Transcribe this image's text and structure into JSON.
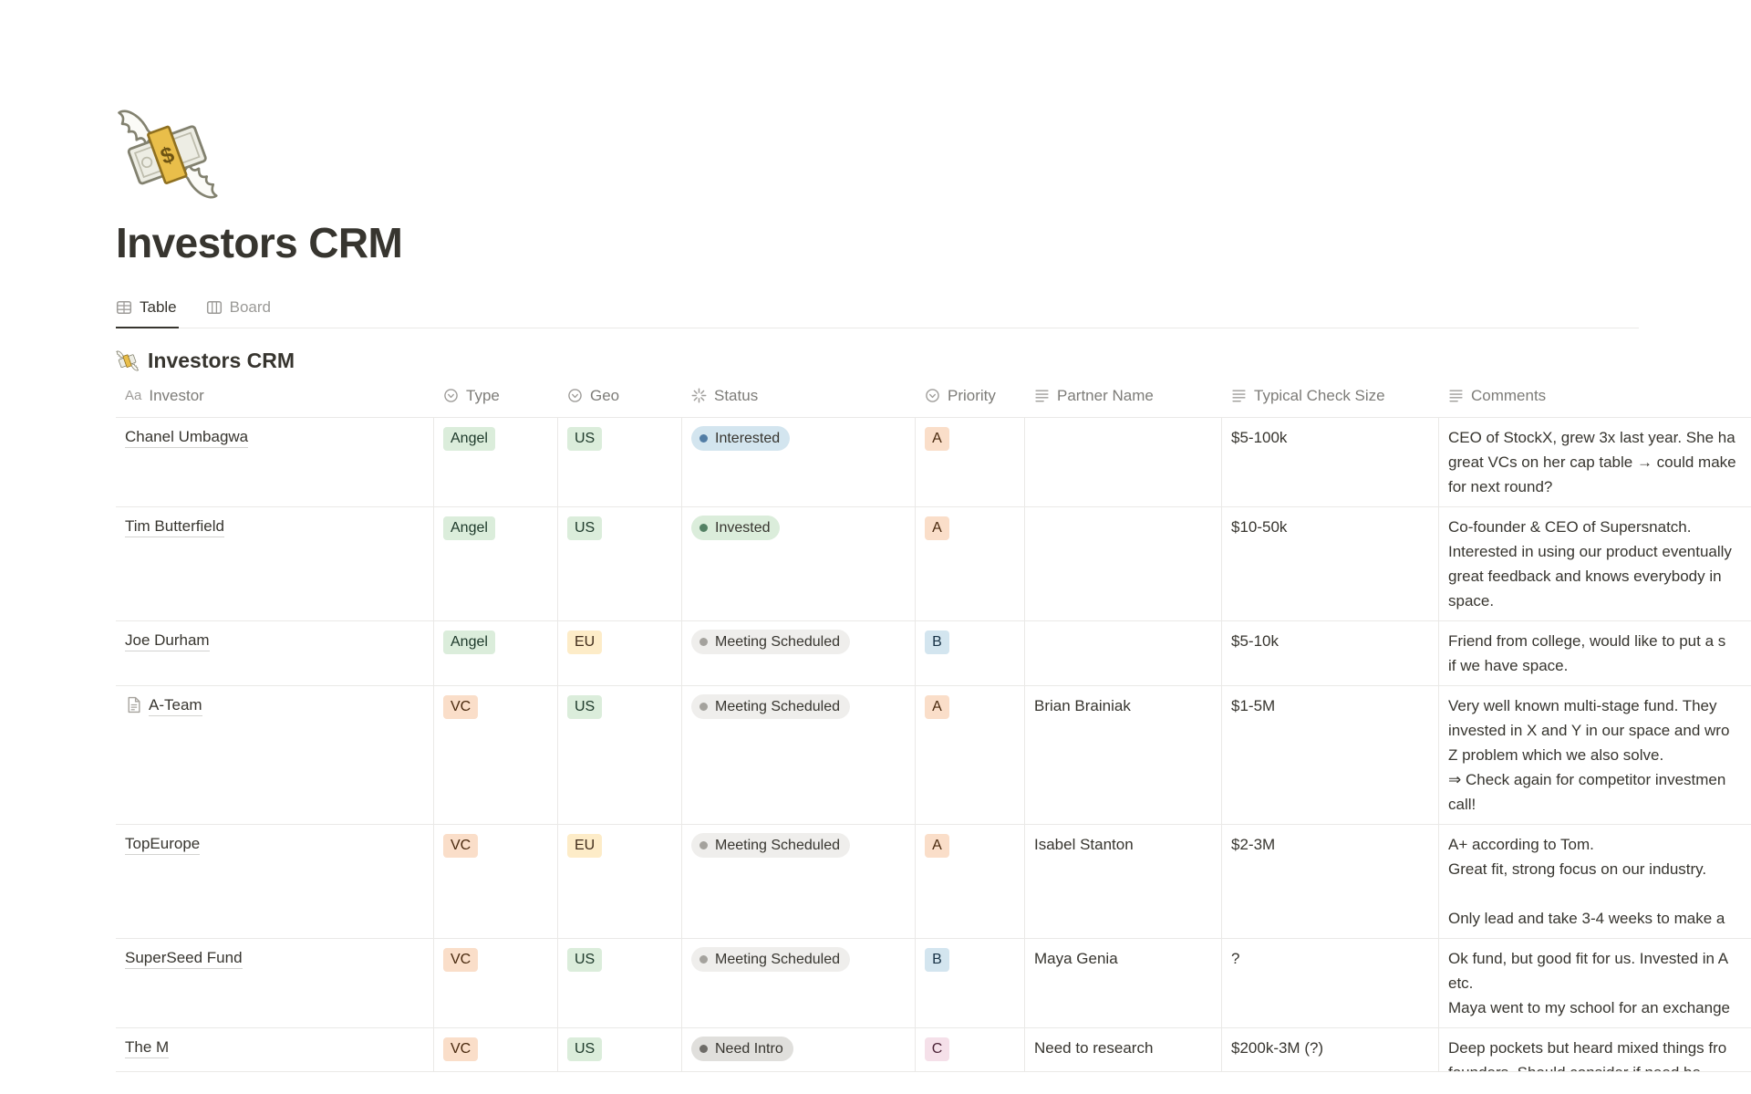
{
  "page": {
    "title": "Investors CRM",
    "icon": "money-with-wings-emoji"
  },
  "tabs": [
    {
      "label": "Table",
      "icon": "table-view-icon",
      "active": true
    },
    {
      "label": "Board",
      "icon": "board-view-icon",
      "active": false
    }
  ],
  "section": {
    "title": "Investors CRM",
    "icon": "money-with-wings-emoji"
  },
  "table": {
    "columns": [
      {
        "label": "Investor",
        "icon": "title-icon"
      },
      {
        "label": "Type",
        "icon": "select-icon"
      },
      {
        "label": "Geo",
        "icon": "select-icon"
      },
      {
        "label": "Status",
        "icon": "status-icon"
      },
      {
        "label": "Priority",
        "icon": "select-icon"
      },
      {
        "label": "Partner Name",
        "icon": "text-icon"
      },
      {
        "label": "Typical Check Size",
        "icon": "text-icon"
      },
      {
        "label": "Comments",
        "icon": "text-icon"
      }
    ],
    "rows": [
      {
        "investor": "Chanel Umbagwa",
        "has_page_icon": false,
        "type": {
          "label": "Angel",
          "color": "green"
        },
        "geo": {
          "label": "US",
          "color": "green"
        },
        "status": {
          "label": "Interested",
          "color": "blue"
        },
        "priority": {
          "label": "A",
          "color": "orange"
        },
        "partner": "",
        "check_size": "$5-100k",
        "comments": [
          "CEO of StockX, grew 3x last year. She ha",
          "great VCs on her cap table → could make",
          "for next round?"
        ]
      },
      {
        "investor": "Tim Butterfield",
        "has_page_icon": false,
        "type": {
          "label": "Angel",
          "color": "green"
        },
        "geo": {
          "label": "US",
          "color": "green"
        },
        "status": {
          "label": "Invested",
          "color": "green"
        },
        "priority": {
          "label": "A",
          "color": "orange"
        },
        "partner": "",
        "check_size": "$10-50k",
        "comments": [
          "Co-founder & CEO of Supersnatch.",
          "Interested in using our product eventually",
          "great feedback and knows everybody in",
          "space."
        ]
      },
      {
        "investor": "Joe Durham",
        "has_page_icon": false,
        "type": {
          "label": "Angel",
          "color": "green"
        },
        "geo": {
          "label": "EU",
          "color": "yellow"
        },
        "status": {
          "label": "Meeting Scheduled",
          "color": "gray"
        },
        "priority": {
          "label": "B",
          "color": "blue"
        },
        "partner": "",
        "check_size": "$5-10k",
        "comments": [
          "Friend from college, would like to put a s",
          "if we have space."
        ]
      },
      {
        "investor": "A-Team",
        "has_page_icon": true,
        "type": {
          "label": "VC",
          "color": "orange"
        },
        "geo": {
          "label": "US",
          "color": "green"
        },
        "status": {
          "label": "Meeting Scheduled",
          "color": "gray"
        },
        "priority": {
          "label": "A",
          "color": "orange"
        },
        "partner": "Brian Brainiak",
        "check_size": "$1-5M",
        "comments": [
          "Very well known multi-stage fund. They",
          "invested in X and Y in our space and wro",
          "Z problem which we also solve.",
          "⇒ Check again for competitor investmen",
          "call!"
        ]
      },
      {
        "investor": "TopEurope",
        "has_page_icon": false,
        "type": {
          "label": "VC",
          "color": "orange"
        },
        "geo": {
          "label": "EU",
          "color": "yellow"
        },
        "status": {
          "label": "Meeting Scheduled",
          "color": "gray"
        },
        "priority": {
          "label": "A",
          "color": "orange"
        },
        "partner": "Isabel Stanton",
        "check_size": "$2-3M",
        "comments": [
          "A+ according to Tom.",
          "Great fit, strong focus on our industry.",
          "",
          "Only lead and take 3-4 weeks to make a"
        ]
      },
      {
        "investor": "SuperSeed Fund",
        "has_page_icon": false,
        "type": {
          "label": "VC",
          "color": "orange"
        },
        "geo": {
          "label": "US",
          "color": "green"
        },
        "status": {
          "label": "Meeting Scheduled",
          "color": "gray"
        },
        "priority": {
          "label": "B",
          "color": "blue"
        },
        "partner": "Maya Genia",
        "check_size": "?",
        "comments": [
          "Ok fund, but good fit for us. Invested in A",
          "etc.",
          "Maya went to my school for an exchange"
        ]
      },
      {
        "investor": "The M",
        "has_page_icon": false,
        "clipped": true,
        "type": {
          "label": "VC",
          "color": "orange"
        },
        "geo": {
          "label": "US",
          "color": "green"
        },
        "status": {
          "label": "Need Intro",
          "color": "darkgray"
        },
        "priority": {
          "label": "C",
          "color": "pink"
        },
        "partner": "Need to research",
        "check_size": "$200k-3M (?)",
        "comments": [
          "Deep pockets but heard mixed things fro",
          "founders. Should consider if need be"
        ]
      }
    ]
  },
  "colors": {
    "badges": {
      "green": {
        "bg": "#DBEDDB",
        "text": "#1C3829"
      },
      "yellow": {
        "bg": "#FDECC8",
        "text": "#402C1B"
      },
      "orange": {
        "bg": "#FADEC9",
        "text": "#49290E"
      },
      "blue": {
        "bg": "#D3E5EF",
        "text": "#183347"
      },
      "pink": {
        "bg": "#F5E0E9",
        "text": "#4C2337"
      }
    },
    "status": {
      "blue": {
        "bg": "#D3E5EF",
        "dot": "#527DA5"
      },
      "green": {
        "bg": "#DBEDDB",
        "dot": "#548164"
      },
      "gray": {
        "bg": "#EFEEEC",
        "dot": "#A4A29D"
      },
      "darkgray": {
        "bg": "#E0DFDC",
        "dot": "#6E6C68"
      }
    },
    "primary_text": "#37352F",
    "secondary_text": "#7D7C78",
    "border": "#EAE9E7"
  }
}
